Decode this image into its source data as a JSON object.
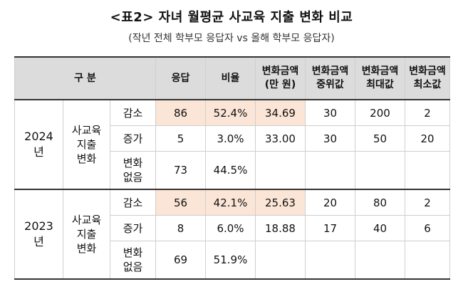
{
  "title": "<표2> 자녀 월평균 사교육 지출 변화 비교",
  "subtitle": "(작년 전체 학부모 응답자 vs 올해 학부모 응답자)",
  "headers": {
    "category": "구 분",
    "responses": "응답",
    "ratio": "비율",
    "amount_l1": "변화금액",
    "amount_l2": "(만 원)",
    "median_l1": "변화금액",
    "median_l2": "중위값",
    "max_l1": "변화금액",
    "max_l2": "최대값",
    "min_l1": "변화금액",
    "min_l2": "최소값"
  },
  "groups": [
    {
      "year_l1": "2024",
      "year_l2": "년",
      "cat_l1": "사교육",
      "cat_l2": "지출",
      "cat_l3": "변화",
      "rows": [
        {
          "label_l1": "감소",
          "label_l2": "",
          "responses": "86",
          "ratio": "52.4%",
          "amount": "34.69",
          "median": "30",
          "max": "200",
          "min": "2"
        },
        {
          "label_l1": "증가",
          "label_l2": "",
          "responses": "5",
          "ratio": "3.0%",
          "amount": "33.00",
          "median": "30",
          "max": "50",
          "min": "20"
        },
        {
          "label_l1": "변화",
          "label_l2": "없음",
          "responses": "73",
          "ratio": "44.5%",
          "amount": "",
          "median": "",
          "max": "",
          "min": ""
        }
      ]
    },
    {
      "year_l1": "2023",
      "year_l2": "년",
      "cat_l1": "사교육",
      "cat_l2": "지출",
      "cat_l3": "변화",
      "rows": [
        {
          "label_l1": "감소",
          "label_l2": "",
          "responses": "56",
          "ratio": "42.1%",
          "amount": "25.63",
          "median": "20",
          "max": "80",
          "min": "2"
        },
        {
          "label_l1": "증가",
          "label_l2": "",
          "responses": "8",
          "ratio": "6.0%",
          "amount": "18.88",
          "median": "17",
          "max": "40",
          "min": "6"
        },
        {
          "label_l1": "변화",
          "label_l2": "없음",
          "responses": "69",
          "ratio": "51.9%",
          "amount": "",
          "median": "",
          "max": "",
          "min": ""
        }
      ]
    }
  ],
  "colors": {
    "header_bg": "#dcdcdc",
    "highlight": "#fbe5d6"
  }
}
